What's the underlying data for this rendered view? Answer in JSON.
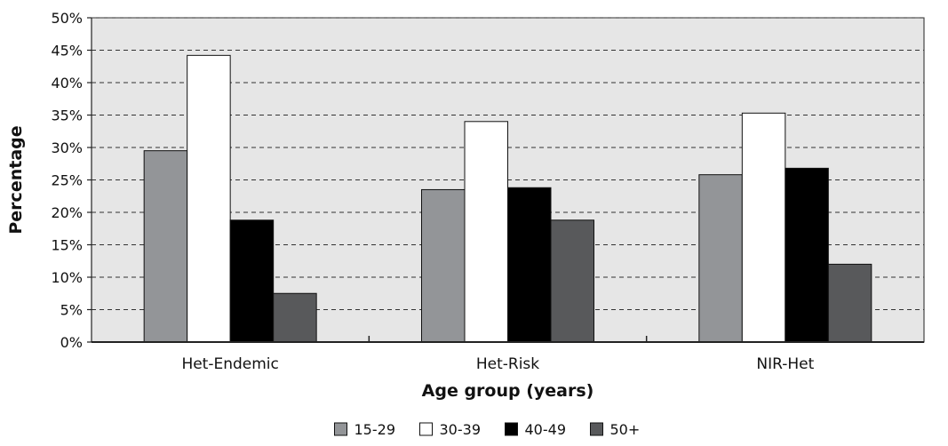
{
  "chart_data": {
    "type": "bar",
    "title": "",
    "xlabel": "Age group (years)",
    "ylabel": "Percentage",
    "ylim": [
      0,
      50
    ],
    "y_tick_step": 5,
    "y_tick_suffix": "%",
    "grid": "horizontal dashed",
    "legend_position": "bottom",
    "plot_background": "#e6e6e6",
    "categories": [
      "Het-Endemic",
      "Het-Risk",
      "NIR-Het"
    ],
    "series": [
      {
        "name": "15-29",
        "color": "#939598",
        "values": [
          29.5,
          23.5,
          25.8
        ]
      },
      {
        "name": "30-39",
        "color": "#ffffff",
        "values": [
          44.2,
          34.0,
          35.3
        ]
      },
      {
        "name": "40-49",
        "color": "#000000",
        "values": [
          18.8,
          23.8,
          26.8
        ]
      },
      {
        "name": "50+",
        "color": "#58595b",
        "values": [
          7.5,
          18.8,
          12.0
        ]
      }
    ]
  }
}
